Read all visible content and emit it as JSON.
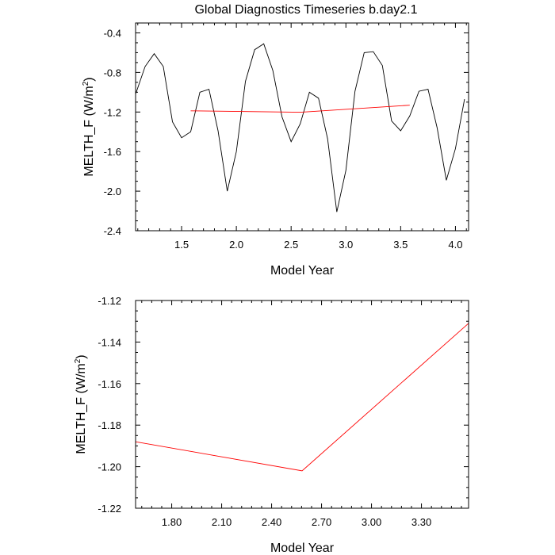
{
  "chart_data": [
    {
      "type": "line",
      "title": "Global Diagnostics Timeseries b.day2.1",
      "xlabel": "Model Year",
      "ylabel": "MELTH_F (W/m",
      "ylabel_sup": "2",
      "ylabel_close": ")",
      "xlim": [
        1.08,
        4.12
      ],
      "ylim": [
        -2.4,
        -0.3
      ],
      "xticks": [
        1.5,
        2.0,
        2.5,
        3.0,
        3.5,
        4.0
      ],
      "xtick_labels": [
        "1.5",
        "2.0",
        "2.5",
        "3.0",
        "3.5",
        "4.0"
      ],
      "yticks": [
        -2.4,
        -2.0,
        -1.6,
        -1.2,
        -0.8,
        -0.4
      ],
      "ytick_labels": [
        "-2.4",
        "-2.0",
        "-1.6",
        "-1.2",
        "-0.8",
        "-0.4"
      ],
      "grid": false,
      "series": [
        {
          "color": "#000000",
          "x": [
            1.083,
            1.167,
            1.25,
            1.333,
            1.417,
            1.5,
            1.583,
            1.667,
            1.75,
            1.833,
            1.917,
            2.0,
            2.083,
            2.167,
            2.25,
            2.333,
            2.417,
            2.5,
            2.583,
            2.667,
            2.75,
            2.833,
            2.917,
            3.0,
            3.083,
            3.167,
            3.25,
            3.333,
            3.417,
            3.5,
            3.583,
            3.667,
            3.75,
            3.833,
            3.917,
            4.0,
            4.083
          ],
          "values": [
            -1.01,
            -0.74,
            -0.61,
            -0.74,
            -1.3,
            -1.46,
            -1.4,
            -1.0,
            -0.97,
            -1.39,
            -2.0,
            -1.6,
            -0.89,
            -0.57,
            -0.51,
            -0.78,
            -1.25,
            -1.5,
            -1.32,
            -1.0,
            -1.06,
            -1.47,
            -2.21,
            -1.79,
            -0.99,
            -0.6,
            -0.59,
            -0.73,
            -1.29,
            -1.39,
            -1.24,
            -0.99,
            -0.97,
            -1.36,
            -1.89,
            -1.57,
            -1.07
          ]
        },
        {
          "color": "#ff0000",
          "x": [
            1.583,
            2.583,
            3.583
          ],
          "values": [
            -1.188,
            -1.202,
            -1.131
          ]
        }
      ]
    },
    {
      "type": "line",
      "title": "",
      "xlabel": "Model Year",
      "ylabel": "MELTH_F (W/m",
      "ylabel_sup": "2",
      "ylabel_close": ")",
      "xlim": [
        1.583,
        3.583
      ],
      "ylim": [
        -1.22,
        -1.12
      ],
      "xticks": [
        1.8,
        2.1,
        2.4,
        2.7,
        3.0,
        3.3
      ],
      "xtick_labels": [
        "1.80",
        "2.10",
        "2.40",
        "2.70",
        "3.00",
        "3.30"
      ],
      "yticks": [
        -1.22,
        -1.2,
        -1.18,
        -1.16,
        -1.14,
        -1.12
      ],
      "ytick_labels": [
        "-1.22",
        "-1.20",
        "-1.18",
        "-1.16",
        "-1.14",
        "-1.12"
      ],
      "grid": false,
      "series": [
        {
          "color": "#ff0000",
          "x": [
            1.583,
            2.583,
            3.583
          ],
          "values": [
            -1.188,
            -1.202,
            -1.131
          ]
        }
      ]
    }
  ]
}
